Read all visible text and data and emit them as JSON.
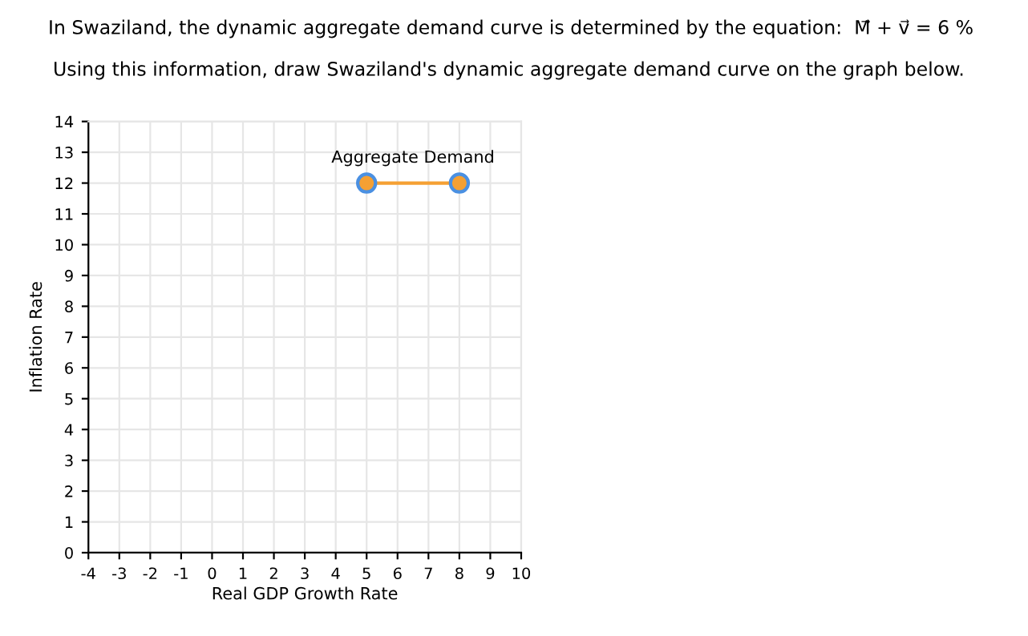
{
  "chart_data": {
    "type": "line",
    "title": "In Swaziland, the dynamic aggregate demand curve is determined by the equation:  M⃗ + v⃗ = 6 %",
    "subtitle": "Using this information, draw Swaziland's dynamic aggregate demand curve on the graph below.",
    "xlabel": "Real GDP Growth Rate",
    "ylabel": "Inflation Rate",
    "series": [
      {
        "name": "Aggregate Demand",
        "color": "#f5a033",
        "x": [
          5,
          8
        ],
        "values": [
          12,
          12
        ]
      }
    ],
    "xlim": [
      -4,
      10
    ],
    "xticks": [
      -4,
      -3,
      -2,
      -1,
      0,
      1,
      2,
      3,
      4,
      5,
      6,
      7,
      8,
      9,
      10
    ],
    "ylim": [
      0,
      14
    ],
    "yticks": [
      0,
      1,
      2,
      3,
      4,
      5,
      6,
      7,
      8,
      9,
      10,
      11,
      12,
      13,
      14
    ],
    "grid": true,
    "marker": "circle",
    "line_style": "solid",
    "legend": false
  }
}
